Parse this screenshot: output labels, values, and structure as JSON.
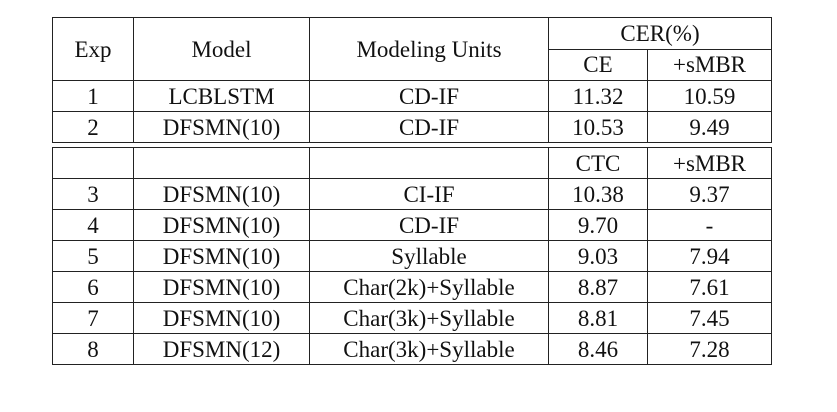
{
  "table": {
    "header": {
      "exp": "Exp",
      "model": "Model",
      "units": "Modeling Units",
      "metric": "CER(%)",
      "sub1": "CE",
      "sub2": "+sMBR"
    },
    "section1": [
      {
        "exp": "1",
        "model": "LCBLSTM",
        "units": "CD-IF",
        "v1": "11.32",
        "v2": "10.59"
      },
      {
        "exp": "2",
        "model": "DFSMN(10)",
        "units": "CD-IF",
        "v1": "10.53",
        "v2": "9.49"
      }
    ],
    "section2_header": {
      "exp": "",
      "model": "",
      "units": "",
      "sub1": "CTC",
      "sub2": "+sMBR"
    },
    "section2": [
      {
        "exp": "3",
        "model": "DFSMN(10)",
        "units": "CI-IF",
        "v1": "10.38",
        "v2": "9.37"
      },
      {
        "exp": "4",
        "model": "DFSMN(10)",
        "units": "CD-IF",
        "v1": "9.70",
        "v2": "-"
      },
      {
        "exp": "5",
        "model": "DFSMN(10)",
        "units": "Syllable",
        "v1": "9.03",
        "v2": "7.94"
      },
      {
        "exp": "6",
        "model": "DFSMN(10)",
        "units": "Char(2k)+Syllable",
        "v1": "8.87",
        "v2": "7.61"
      },
      {
        "exp": "7",
        "model": "DFSMN(10)",
        "units": "Char(3k)+Syllable",
        "v1": "8.81",
        "v2": "7.45"
      },
      {
        "exp": "8",
        "model": "DFSMN(12)",
        "units": "Char(3k)+Syllable",
        "v1": "8.46",
        "v2": "7.28"
      }
    ]
  }
}
